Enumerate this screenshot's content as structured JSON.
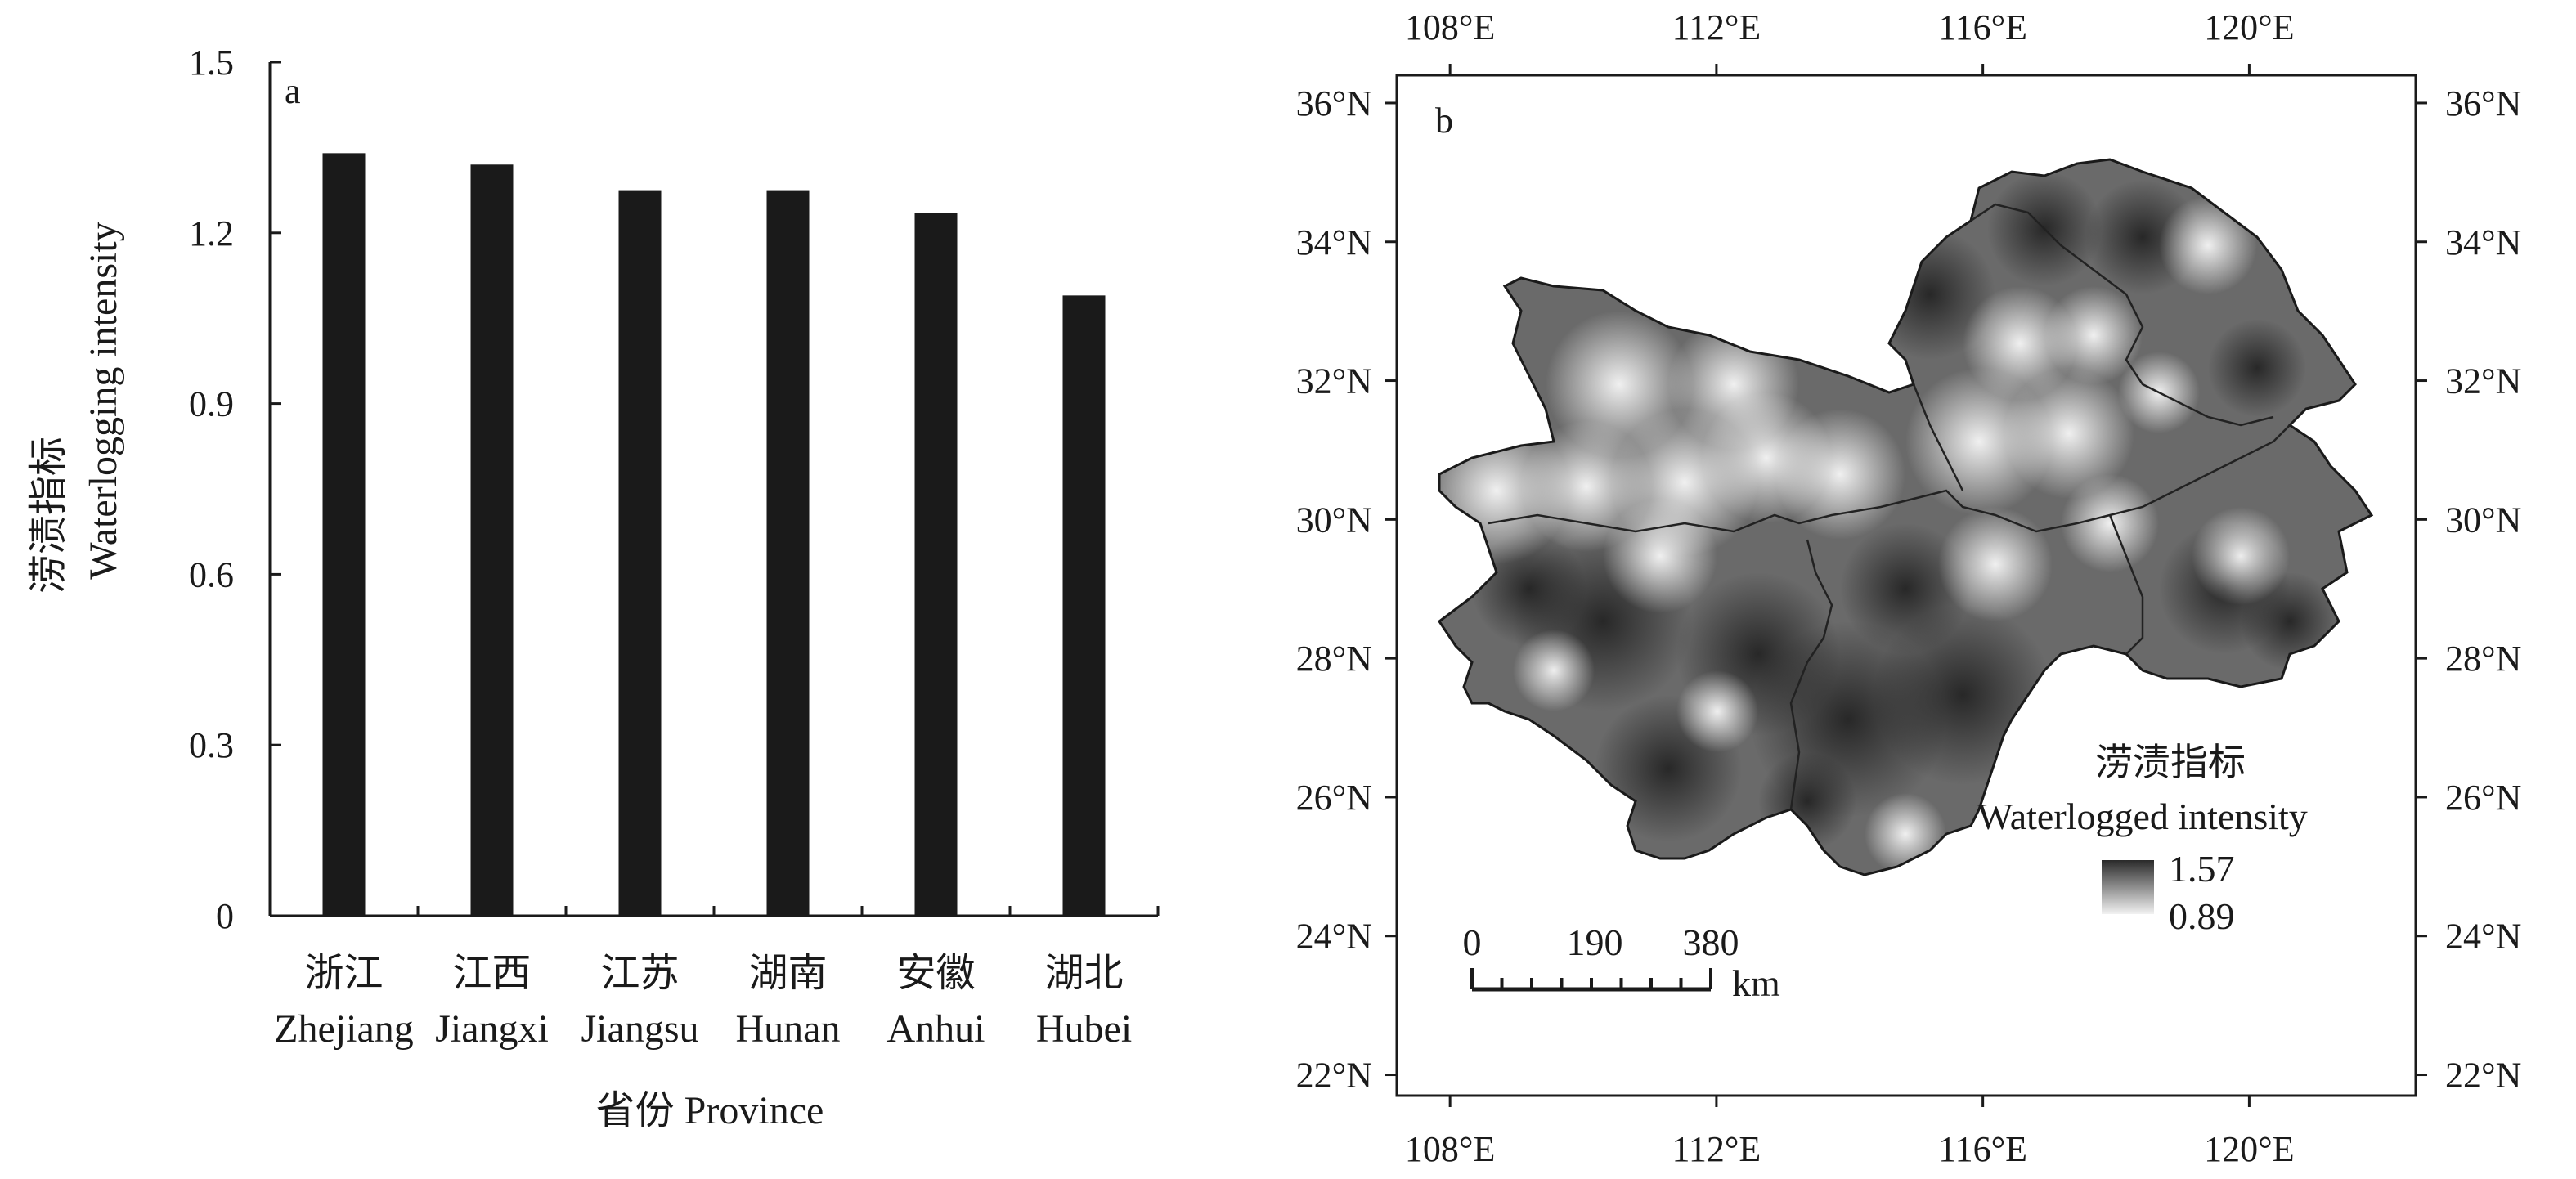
{
  "chart_data": [
    {
      "panel": "a",
      "type": "bar",
      "categories": [
        {
          "zh": "浙江",
          "en": "Zhejiang"
        },
        {
          "zh": "江西",
          "en": "Jiangxi"
        },
        {
          "zh": "江苏",
          "en": "Jiangsu"
        },
        {
          "zh": "湖南",
          "en": "Hunan"
        },
        {
          "zh": "安徽",
          "en": "Anhui"
        },
        {
          "zh": "湖北",
          "en": "Hubei"
        }
      ],
      "values": [
        1.34,
        1.32,
        1.275,
        1.275,
        1.235,
        1.09
      ],
      "ylim": [
        0,
        1.5
      ],
      "yticks": [
        "0",
        "0.3",
        "0.6",
        "0.9",
        "1.2",
        "1.5"
      ],
      "ylabel_zh": "涝渍指标",
      "ylabel_en": "Waterlogging intensity",
      "xlabel": "省份 Province",
      "bar_color": "#1a1a1a",
      "grid": false
    },
    {
      "panel": "b",
      "type": "heatmap",
      "subtype": "map",
      "lon_ticks": [
        "108°E",
        "112°E",
        "116°E",
        "120°E"
      ],
      "lat_ticks": [
        "22°N",
        "24°N",
        "26°N",
        "28°N",
        "30°N",
        "32°N",
        "34°N",
        "36°N"
      ],
      "lon_range": [
        107.2,
        122.5
      ],
      "lat_range": [
        21.7,
        36.4
      ],
      "legend": {
        "title_zh": "涝渍指标",
        "title_en": "Waterlogged intensity",
        "max": "1.57",
        "min": "0.89",
        "placement": "bottom-right"
      },
      "scale_bar": {
        "labels": [
          "0",
          "190",
          "380"
        ],
        "unit": "km"
      },
      "color_max": "#2a2a2a",
      "color_min": "#f2f2f2"
    }
  ]
}
